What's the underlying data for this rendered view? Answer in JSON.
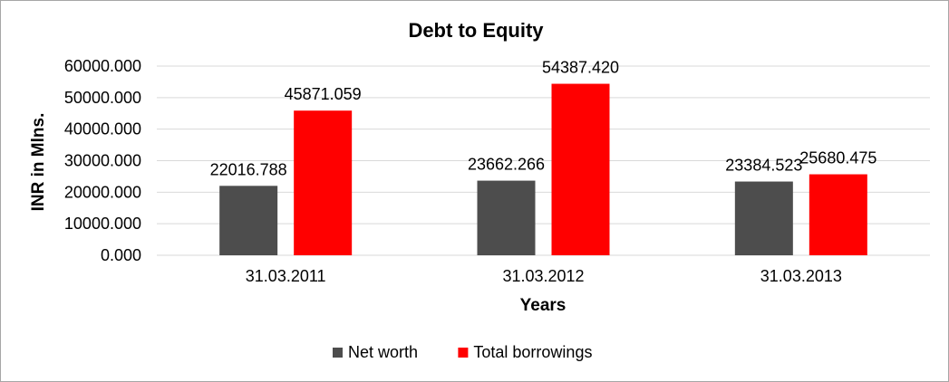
{
  "chart_data": {
    "type": "bar",
    "title": "Debt to Equity",
    "xlabel": "Years",
    "ylabel": "INR in Mlns.",
    "categories": [
      "31.03.2011",
      "31.03.2012",
      "31.03.2013"
    ],
    "series": [
      {
        "name": "Net worth",
        "color": "#4d4d4d",
        "values": [
          22016.788,
          23662.266,
          23384.523
        ],
        "labels": [
          "22016.788",
          "23662.266",
          "23384.523"
        ]
      },
      {
        "name": "Total borrowings",
        "color": "#ff0000",
        "values": [
          45871.059,
          54387.42,
          25680.475
        ],
        "labels": [
          "45871.059",
          "54387.420",
          "25680.475"
        ]
      }
    ],
    "ylim": [
      0,
      60000
    ],
    "yticks": [
      0,
      10000,
      20000,
      30000,
      40000,
      50000,
      60000
    ],
    "ytick_labels": [
      "0.000",
      "10000.000",
      "20000.000",
      "30000.000",
      "40000.000",
      "50000.000",
      "60000.000"
    ],
    "grid": true,
    "legend_position": "bottom"
  }
}
